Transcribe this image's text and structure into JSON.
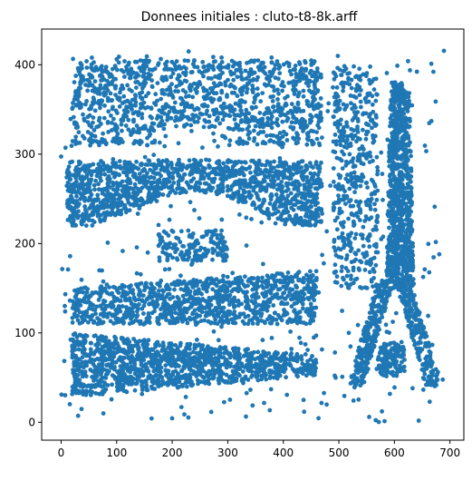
{
  "chart_data": {
    "type": "scatter",
    "title": "Donnees initiales : cluto-t8-8k.arff",
    "xlabel": "",
    "ylabel": "",
    "xlim": [
      -35,
      725
    ],
    "ylim": [
      -20,
      440
    ],
    "xticks": [
      "0",
      "100",
      "200",
      "300",
      "400",
      "500",
      "600",
      "700"
    ],
    "yticks": [
      "0",
      "100",
      "200",
      "300",
      "400"
    ],
    "xtick_values": [
      0,
      100,
      200,
      300,
      400,
      500,
      600,
      700
    ],
    "ytick_values": [
      0,
      100,
      200,
      300,
      400
    ],
    "grid": false,
    "legend": "none",
    "marker_color": "#1f77b4",
    "clusters": [
      {
        "shape": "region",
        "label": "top band",
        "x_range": [
          20,
          470
        ],
        "y_range": [
          300,
          410
        ],
        "approx_points": 1100
      },
      {
        "shape": "region",
        "label": "wave band",
        "x_range": [
          10,
          470
        ],
        "y_range": [
          220,
          310
        ],
        "approx_points": 1300
      },
      {
        "shape": "region",
        "label": "small middle block",
        "x_range": [
          175,
          300
        ],
        "y_range": [
          180,
          215
        ],
        "approx_points": 150
      },
      {
        "shape": "region",
        "label": "upper lower band",
        "x_range": [
          20,
          460
        ],
        "y_range": [
          110,
          170
        ],
        "approx_points": 1000
      },
      {
        "shape": "region",
        "label": "bottom band",
        "x_range": [
          20,
          460
        ],
        "y_range": [
          30,
          100
        ],
        "approx_points": 1200
      },
      {
        "shape": "region",
        "label": "tower stem",
        "x_range": [
          570,
          650
        ],
        "y_range": [
          150,
          380
        ],
        "approx_points": 900
      },
      {
        "shape": "region",
        "label": "tower legs",
        "x_range": [
          510,
          680
        ],
        "y_range": [
          40,
          160
        ],
        "approx_points": 500
      },
      {
        "shape": "region",
        "label": "vertical strip",
        "x_range": [
          490,
          570
        ],
        "y_range": [
          150,
          400
        ],
        "approx_points": 450
      },
      {
        "shape": "region",
        "label": "small ellipse",
        "x_range": [
          570,
          620
        ],
        "y_range": [
          50,
          90
        ],
        "approx_points": 120
      },
      {
        "shape": "noise",
        "label": "background noise",
        "x_range": [
          0,
          690
        ],
        "y_range": [
          0,
          420
        ],
        "approx_points": 400
      }
    ]
  }
}
